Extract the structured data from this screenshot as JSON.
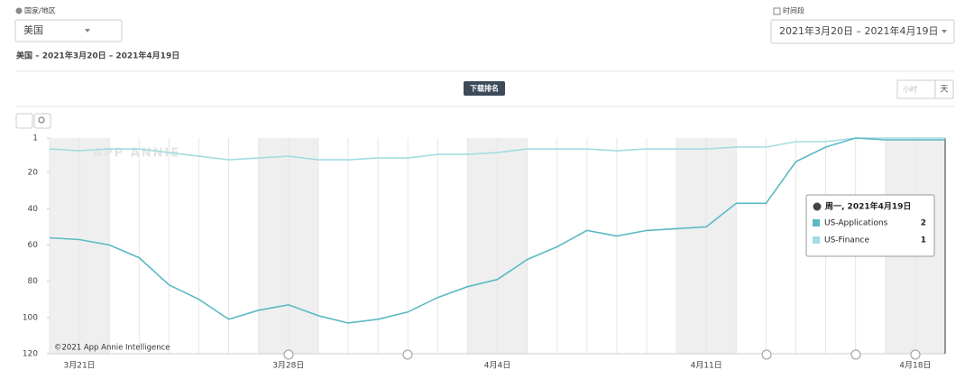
{
  "ui": {
    "region_label": "国家/地区",
    "region_value": "美国",
    "period_label": "时间段",
    "period_value": "2021年3月20日 – 2021年4月19日",
    "subtitle": "美国 – 2021年3月20日 – 2021年4月19日",
    "tab": "下载排名",
    "hour_button": "小时",
    "day_button": "天",
    "watermark": "APP ANNIE",
    "copyright": "©2021 App Annie Intelligence",
    "tooltip_date": "周一, 2021年4月19日"
  },
  "chart_data": {
    "type": "line",
    "categories": [
      null,
      "3月21日",
      null,
      null,
      null,
      null,
      null,
      null,
      "3月28日",
      null,
      null,
      null,
      null,
      null,
      null,
      "4月4日",
      null,
      null,
      null,
      null,
      null,
      null,
      "4月11日",
      null,
      null,
      null,
      null,
      null,
      null,
      "4月18日",
      null
    ],
    "series": [
      {
        "name": "US-Applications",
        "color": "#5bbac4",
        "values": [
          56,
          57,
          60,
          67,
          82,
          90,
          101,
          96,
          93,
          99,
          103,
          101,
          97,
          89,
          83,
          79,
          68,
          61,
          52,
          55,
          52,
          51,
          50,
          37,
          37,
          14,
          6,
          1,
          2,
          2,
          2
        ]
      },
      {
        "name": "US-Finance",
        "color": "#a3dce2",
        "values": [
          7,
          8,
          7,
          7,
          9,
          11,
          13,
          12,
          11,
          13,
          13,
          12,
          12,
          10,
          10,
          9,
          7,
          7,
          7,
          8,
          7,
          7,
          7,
          6,
          6,
          3,
          3,
          1,
          1,
          1,
          1
        ]
      }
    ],
    "ylim": [
      1,
      120
    ],
    "yticks": [
      1,
      20,
      40,
      60,
      80,
      100,
      120
    ],
    "y_reversed": true,
    "grid": false
  }
}
